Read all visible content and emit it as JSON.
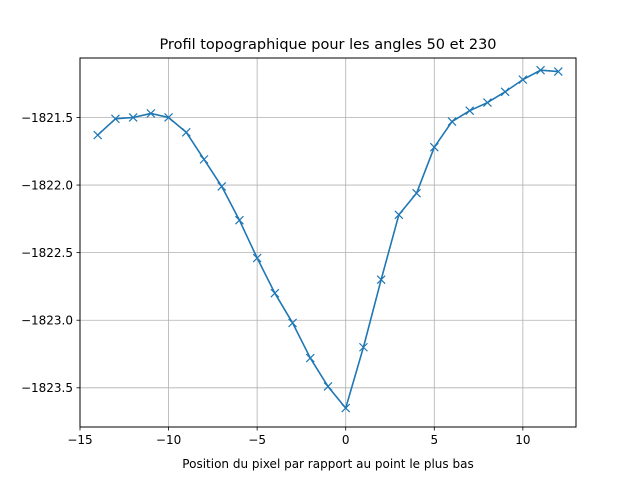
{
  "chart_data": {
    "type": "line",
    "title": "Profil topographique pour les angles 50 et 230",
    "xlabel": "Position du pixel par rapport au point le plus bas",
    "ylabel": "",
    "xlim": [
      -15,
      13
    ],
    "ylim": [
      -1823.79,
      -1821.06
    ],
    "x_ticks": [
      -15,
      -10,
      -5,
      0,
      5,
      10
    ],
    "x_tick_labels": [
      "−15",
      "−10",
      "−5",
      "0",
      "5",
      "10"
    ],
    "y_ticks": [
      -1821.5,
      -1822.0,
      -1822.5,
      -1823.0,
      -1823.5
    ],
    "y_tick_labels": [
      "−1821.5",
      "−1822.0",
      "−1822.5",
      "−1823.0",
      "−1823.5"
    ],
    "grid": true,
    "marker": "x",
    "line_color": "#1f77b4",
    "series": [
      {
        "x": [
          -14,
          -13,
          -12,
          -11,
          -10,
          -9,
          -8,
          -7,
          -6,
          -5,
          -4,
          -3,
          -2,
          -1,
          0,
          1,
          2,
          3,
          4,
          5,
          6,
          7,
          8,
          9,
          10,
          11,
          12
        ],
        "values": [
          -1821.63,
          -1821.51,
          -1821.5,
          -1821.47,
          -1821.5,
          -1821.61,
          -1821.81,
          -1822.01,
          -1822.26,
          -1822.54,
          -1822.8,
          -1823.02,
          -1823.28,
          -1823.49,
          -1823.65,
          -1823.2,
          -1822.7,
          -1822.22,
          -1822.06,
          -1821.72,
          -1821.53,
          -1821.45,
          -1821.39,
          -1821.31,
          -1821.22,
          -1821.15,
          -1821.16
        ]
      }
    ]
  }
}
